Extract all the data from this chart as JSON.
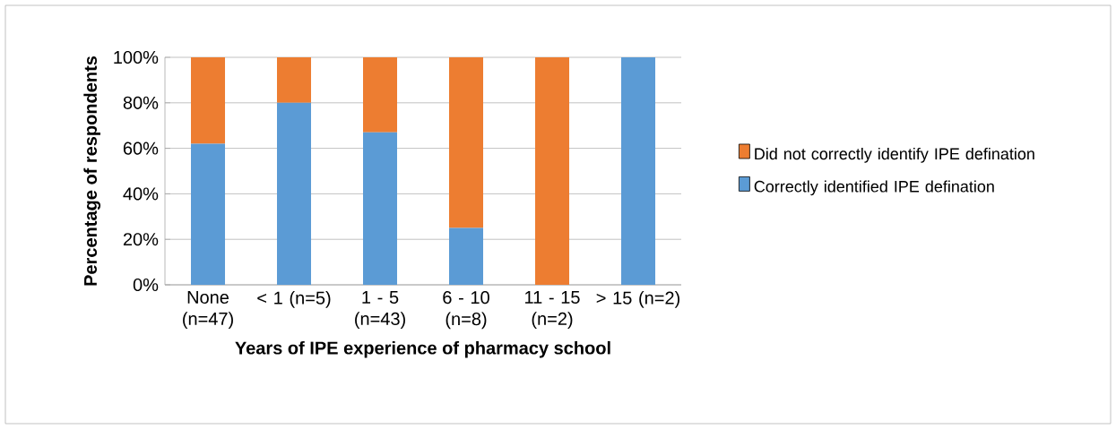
{
  "chart_data": {
    "type": "bar",
    "stacked": true,
    "xlabel": "Years of IPE experience of pharmacy school",
    "ylabel": "Percentage of respondents",
    "categories": [
      "None (n=47)",
      "< 1 (n=5)",
      "1 - 5 (n=43)",
      "6 - 10 (n=8)",
      "11 - 15 (n=2)",
      "> 15 (n=2)"
    ],
    "series": [
      {
        "name": "Correctly identified IPE defination",
        "color": "#5b9bd5",
        "values": [
          62,
          80,
          67,
          25,
          0,
          100
        ]
      },
      {
        "name": "Did not correctly identify IPE defination",
        "color": "#ed7d31",
        "values": [
          38,
          20,
          33,
          75,
          100,
          0
        ]
      }
    ],
    "ylim": [
      0,
      100
    ],
    "yticks": [
      {
        "value": 0,
        "label": "0%"
      },
      {
        "value": 20,
        "label": "20%"
      },
      {
        "value": 40,
        "label": "40%"
      },
      {
        "value": 60,
        "label": "60%"
      },
      {
        "value": 80,
        "label": "80%"
      },
      {
        "value": 100,
        "label": "100%"
      }
    ],
    "grid": "y",
    "legend": "right"
  }
}
